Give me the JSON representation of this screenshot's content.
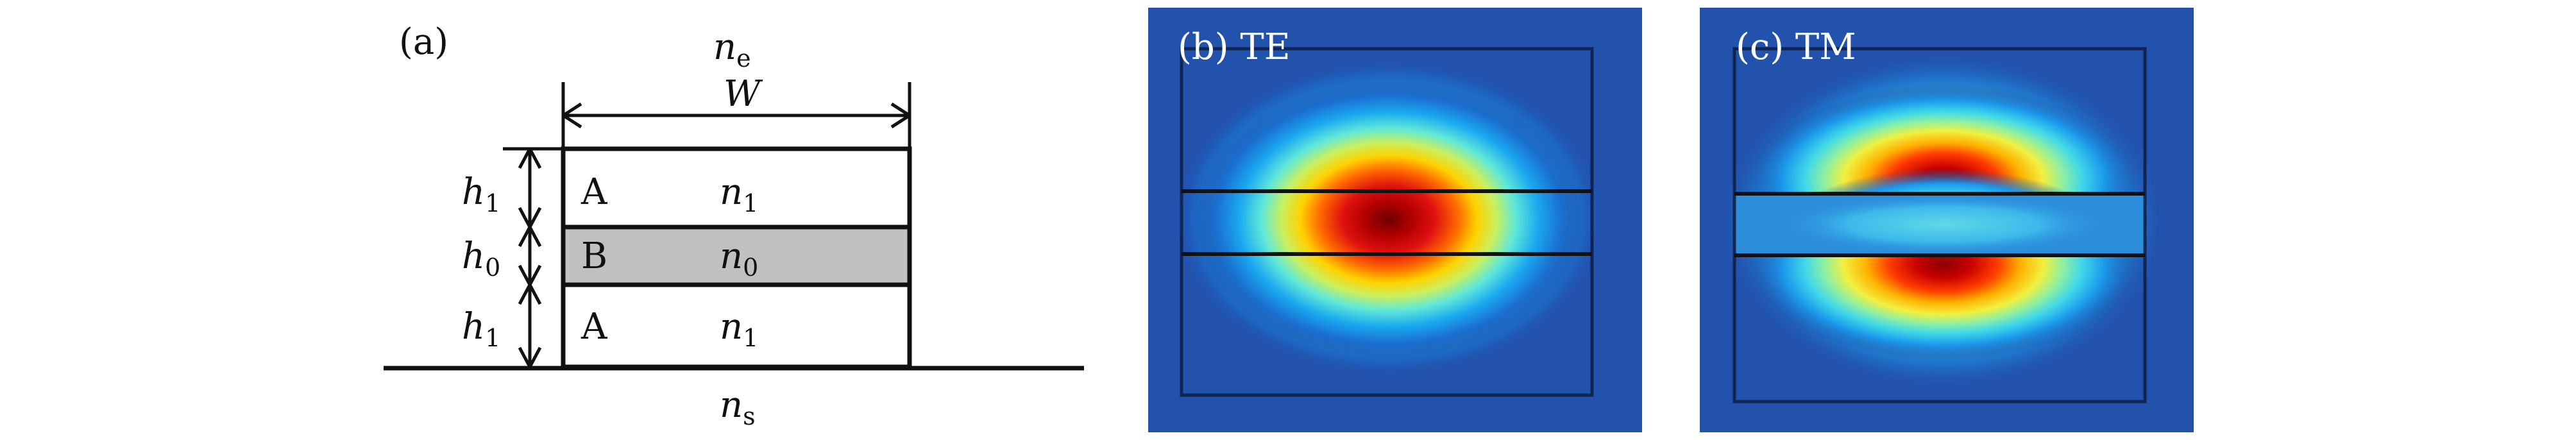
{
  "panel_a": {
    "label": "(a)",
    "n_e": {
      "base": "n",
      "sub": "e"
    },
    "width": "W",
    "h1_top": {
      "base": "h",
      "sub": "1"
    },
    "h0": {
      "base": "h",
      "sub": "0"
    },
    "h1_bottom": {
      "base": "h",
      "sub": "1"
    },
    "layer_top": {
      "name": "A",
      "index": {
        "base": "n",
        "sub": "1"
      }
    },
    "layer_mid": {
      "name": "B",
      "index": {
        "base": "n",
        "sub": "0"
      }
    },
    "layer_bottom": {
      "name": "A",
      "index": {
        "base": "n",
        "sub": "1"
      }
    },
    "n_s": {
      "base": "n",
      "sub": "s"
    }
  },
  "panel_b": {
    "label": "(b) TE",
    "mode": "TE"
  },
  "panel_c": {
    "label": "(c) TM",
    "mode": "TM"
  },
  "colors": {
    "field_background": "#1f4fa8",
    "field_peak": "#8b0000",
    "middle_layer_fill": "#c0c0c0",
    "line": "#111111"
  }
}
